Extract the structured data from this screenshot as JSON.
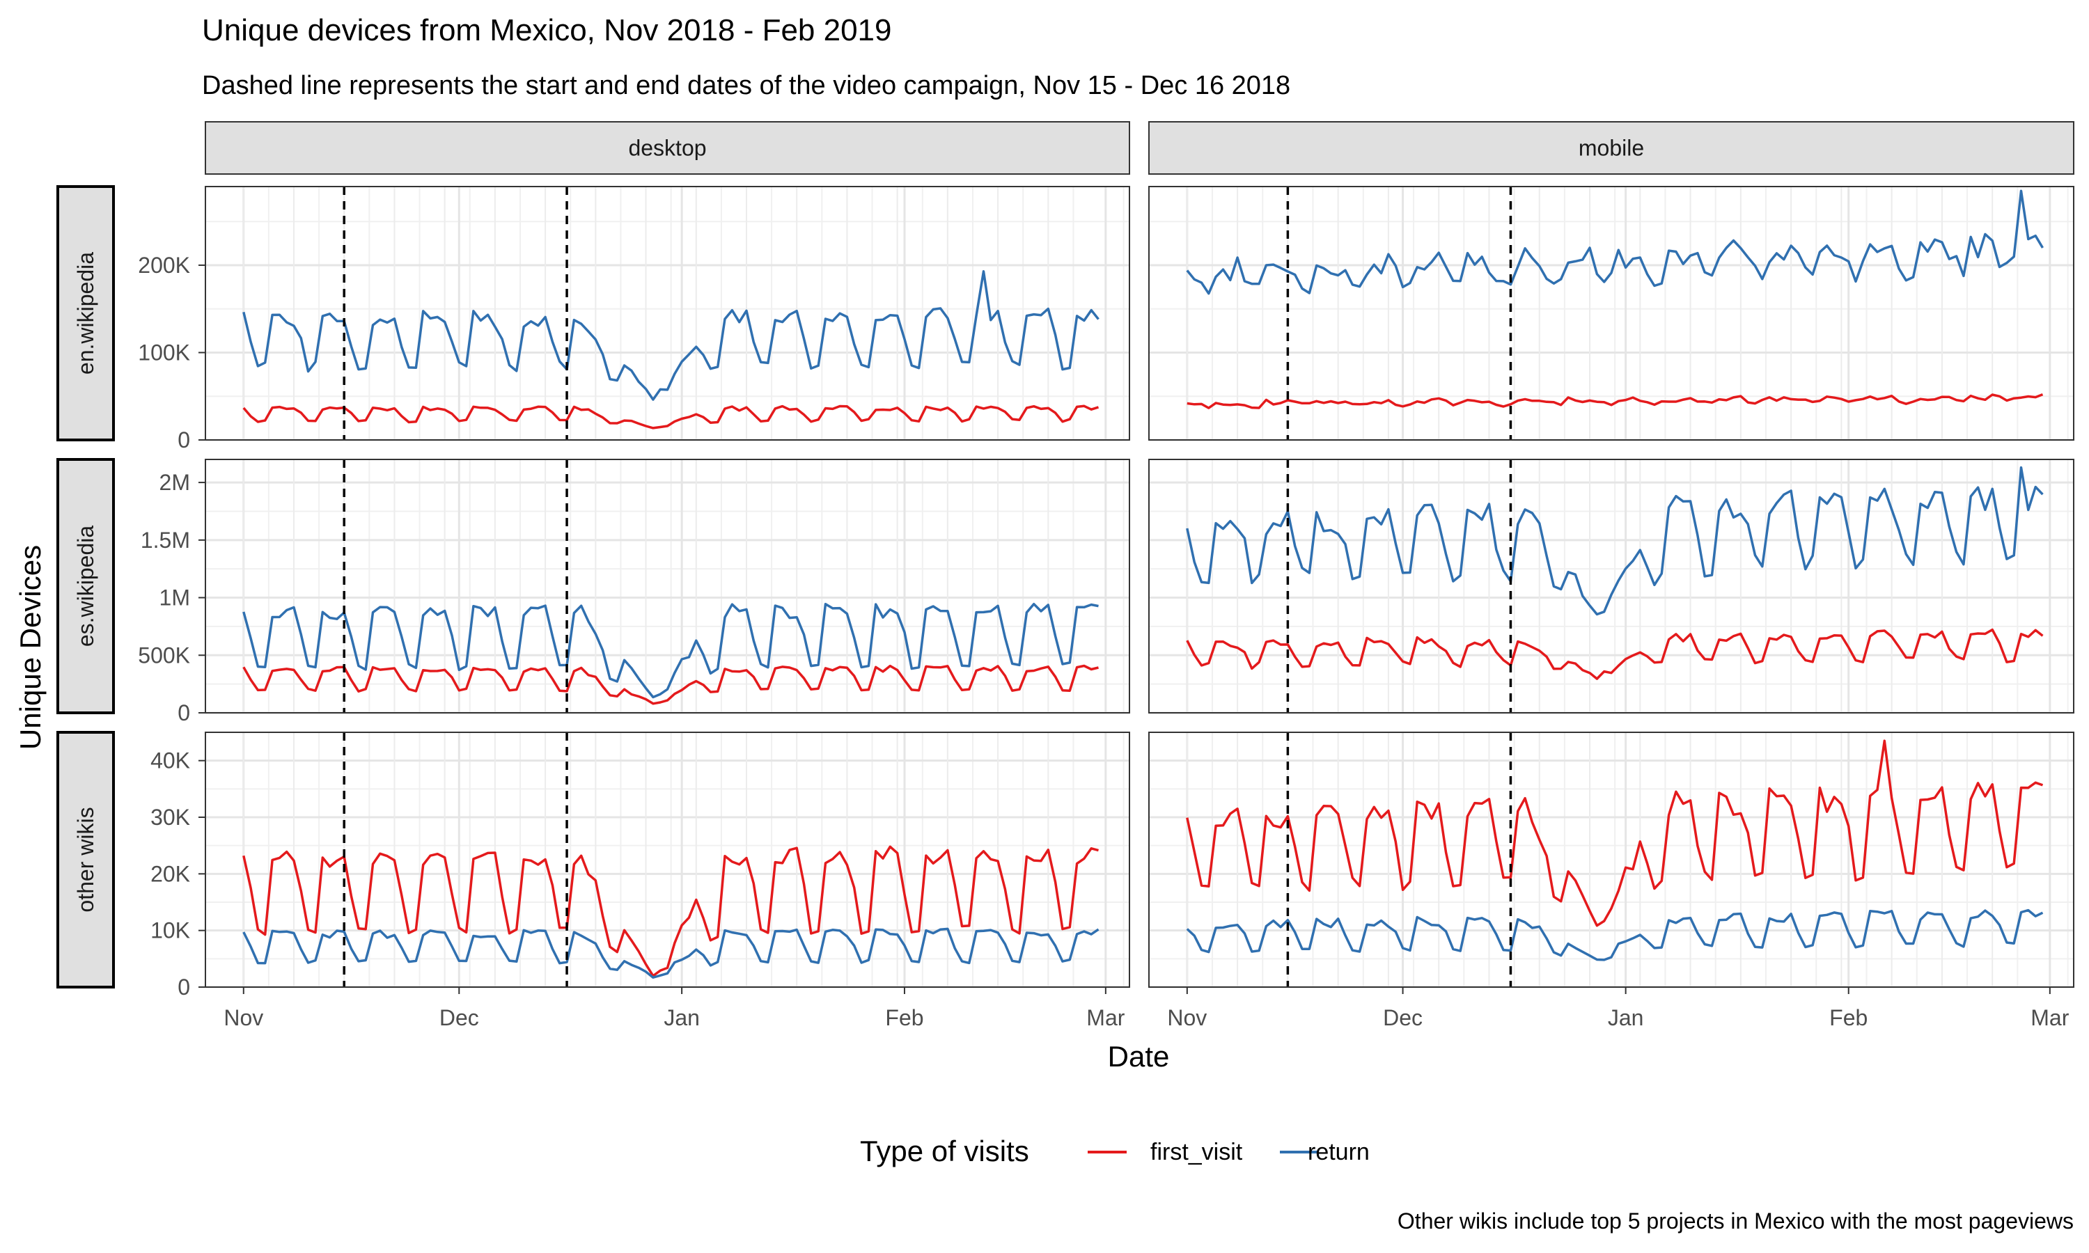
{
  "chart_data": {
    "type": "line",
    "title": "Unique devices from Mexico, Nov 2018 - Feb 2019",
    "subtitle": "Dashed line represents the start and end dates of the video campaign, Nov 15 - Dec 16 2018",
    "caption": "Other wikis include top 5 projects in Mexico with the most pageviews",
    "xlabel": "Date",
    "ylabel": "Unique Devices",
    "x_range": [
      "2018-11-01",
      "2019-02-27"
    ],
    "x_ticks": [
      "Nov",
      "Dec",
      "Jan",
      "Feb",
      "Mar"
    ],
    "x_tick_dates": [
      "2018-11-01",
      "2018-12-01",
      "2019-01-01",
      "2019-02-01",
      "2019-03-01"
    ],
    "campaign_dates": [
      "2018-11-15",
      "2018-12-16"
    ],
    "facet_columns": [
      "desktop",
      "mobile"
    ],
    "facet_rows": [
      {
        "name": "en.wikipedia",
        "ylim": [
          0,
          290000
        ],
        "ticks": [
          0,
          100000,
          200000
        ],
        "tick_labels": [
          "0",
          "100K",
          "200K"
        ]
      },
      {
        "name": "es.wikipedia",
        "ylim": [
          0,
          2200000
        ],
        "ticks": [
          0,
          500000,
          1000000,
          1500000,
          2000000
        ],
        "tick_labels": [
          "0",
          "500K",
          "1M",
          "1.5M",
          "2M"
        ]
      },
      {
        "name": "other wikis",
        "ylim": [
          0,
          45000
        ],
        "ticks": [
          0,
          10000,
          20000,
          30000,
          40000
        ],
        "tick_labels": [
          "0",
          "10K",
          "20K",
          "30K",
          "40K"
        ]
      }
    ],
    "legend": {
      "title": "Type of visits",
      "position": "bottom",
      "items": [
        {
          "name": "first_visit",
          "color": "#e41a1c"
        },
        {
          "name": "return",
          "color": "#3070b0"
        }
      ]
    },
    "grid": true,
    "series_daily_from": "2018-11-01",
    "series_daily_count": 120,
    "panels": [
      {
        "row": "en.wikipedia",
        "col": "desktop",
        "first_visit_pattern": {
          "weekday": 36000,
          "weekend": 22000
        },
        "first_visit_holiday_low": 15000,
        "return_pattern": {
          "weekday": 140000,
          "weekend": 85000
        },
        "return_holiday_low": 50000,
        "return_peak": {
          "date": "2019-02-12",
          "value": 193000
        }
      },
      {
        "row": "en.wikipedia",
        "col": "mobile",
        "first_visit_pattern": {
          "weekday": 46000,
          "weekend": 42000
        },
        "return_pattern": {
          "weekday": 210000,
          "weekend": 185000
        },
        "return_peak": {
          "date": "2019-02-25",
          "value": 285000
        }
      },
      {
        "row": "es.wikipedia",
        "col": "desktop",
        "first_visit_pattern": {
          "weekday": 380000,
          "weekend": 200000
        },
        "first_visit_holiday_low": 80000,
        "return_pattern": {
          "weekday": 880000,
          "weekend": 400000
        },
        "return_holiday_low": 150000
      },
      {
        "row": "es.wikipedia",
        "col": "mobile",
        "first_visit_pattern": {
          "weekday": 640000,
          "weekend": 440000
        },
        "first_visit_holiday_low": 320000,
        "return_pattern": {
          "weekday": 1750000,
          "weekend": 1250000
        },
        "return_holiday_low": 880000,
        "return_peak": {
          "date": "2019-02-25",
          "value": 2130000
        }
      },
      {
        "row": "other wikis",
        "col": "desktop",
        "first_visit_pattern": {
          "weekday": 23000,
          "weekend": 10000
        },
        "first_visit_holiday_low": 2000,
        "return_pattern": {
          "weekday": 9500,
          "weekend": 4500
        },
        "return_holiday_low": 1800
      },
      {
        "row": "other wikis",
        "col": "mobile",
        "first_visit_pattern": {
          "weekday": 32000,
          "weekend": 19000
        },
        "first_visit_holiday_low": 12000,
        "first_visit_peak": {
          "date": "2019-02-06",
          "value": 43500
        },
        "return_pattern": {
          "weekday": 12000,
          "weekend": 7000
        },
        "return_holiday_low": 5000
      }
    ]
  }
}
